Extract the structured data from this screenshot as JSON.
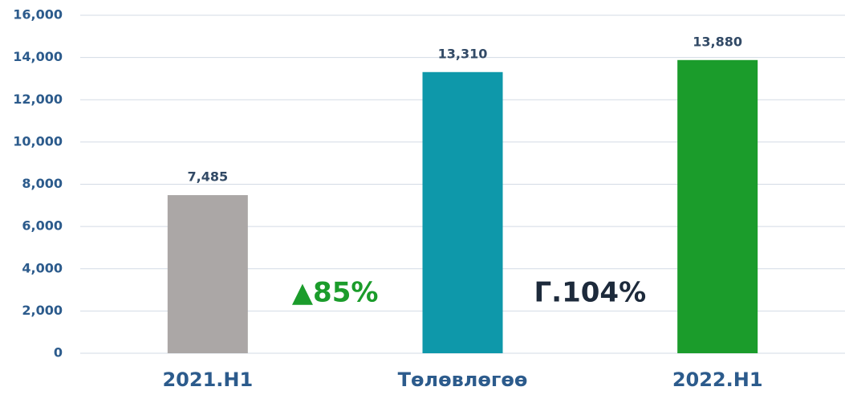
{
  "chart_data": {
    "type": "bar",
    "categories": [
      "2021.H1",
      "Төлөвлөгөө",
      "2022.H1"
    ],
    "values": [
      7485,
      13310,
      13880
    ],
    "value_labels": [
      "7,485",
      "13,310",
      "13,880"
    ],
    "colors": [
      "#aba7a6",
      "#0e98aa",
      "#1b9c2b"
    ],
    "ylim": [
      0,
      16000
    ],
    "yticks": [
      0,
      {
        "value": 2000,
        "label": "2,000"
      },
      {
        "value": 4000,
        "label": "4,000"
      },
      {
        "value": 6000,
        "label": "6,000"
      },
      {
        "value": 8000,
        "label": "8,000"
      },
      {
        "value": 10000,
        "label": "10,000"
      },
      {
        "value": 12000,
        "label": "12,000"
      },
      {
        "value": 14000,
        "label": "14,000"
      },
      {
        "value": 16000,
        "label": "16,000"
      }
    ],
    "grid": true,
    "annotations": [
      {
        "text": "▲85%",
        "color": "#1b9c2b"
      },
      {
        "text": "Г.104%",
        "color": "#1d2a3b"
      }
    ]
  }
}
